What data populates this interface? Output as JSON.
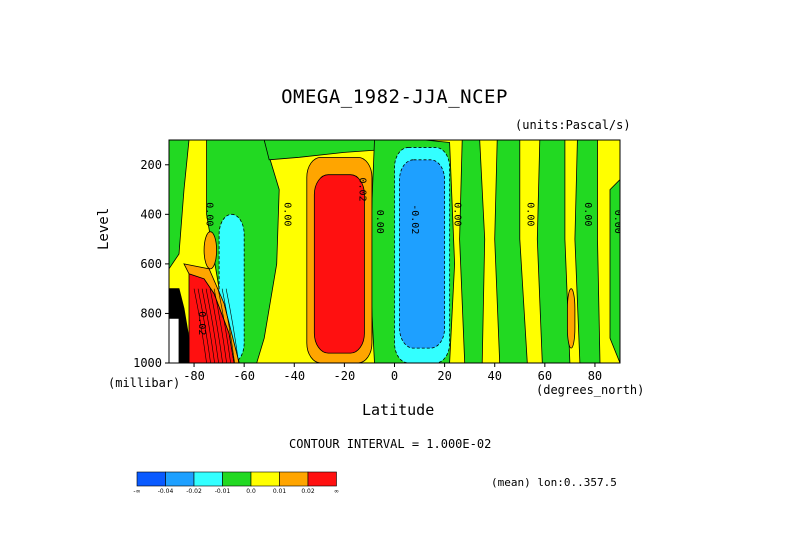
{
  "chart_data": {
    "type": "heatmap",
    "title": "OMEGA_1982-JJA_NCEP",
    "units": "(units:Pascal/s)",
    "xlabel": "Latitude",
    "x_units": "(degrees_north)",
    "ylabel": "Level",
    "y_units": "(millibar)",
    "xlim": [
      -90,
      90
    ],
    "ylim": [
      1000,
      100
    ],
    "x_ticks": [
      -80,
      -60,
      -40,
      -20,
      0,
      20,
      40,
      60,
      80
    ],
    "x_tick_labels": [
      "-80",
      "-60",
      "-40",
      "-20",
      "0",
      "20",
      "40",
      "60",
      "80"
    ],
    "y_ticks": [
      200,
      400,
      600,
      800,
      1000
    ],
    "y_tick_labels": [
      "200",
      "400",
      "600",
      "800",
      "1000"
    ],
    "contour_interval_text": "CONTOUR INTERVAL = 1.000E-02",
    "mean_text": "(mean) lon:0..357.5",
    "colorbar": {
      "colors": [
        "#0a5aff",
        "#1ea0ff",
        "#33ffff",
        "#22d922",
        "#ffff00",
        "#ffa500",
        "#ff1010"
      ],
      "labels": [
        "-∞",
        "-0.04",
        "-0.02",
        "-0.01",
        "0.0",
        "0.01",
        "0.02",
        "∞"
      ]
    },
    "regions": [
      {
        "name": "positive-core-southern-subtropics",
        "lat": [
          -32,
          -12
        ],
        "lev": [
          240,
          960
        ],
        "value": ">0.02"
      },
      {
        "name": "positive-ring-southern-subtropics",
        "lat": [
          -35,
          -9
        ],
        "lev": [
          170,
          1000
        ],
        "value": "0.01 to 0.02"
      },
      {
        "name": "negative-core-tropics",
        "lat": [
          2,
          20
        ],
        "lev": [
          180,
          940
        ],
        "value": "-0.04 to -0.02"
      },
      {
        "name": "negative-ring-tropics",
        "lat": [
          0,
          22
        ],
        "lev": [
          130,
          1000
        ],
        "value": "-0.02 to -0.01"
      },
      {
        "name": "negative-band-60S",
        "lat": [
          -70,
          -60
        ],
        "lev": [
          400,
          1000
        ],
        "value": "-0.02 to -0.01"
      },
      {
        "name": "positive-band-75S",
        "lat": [
          -80,
          -66
        ],
        "lev": [
          660,
          1000
        ],
        "value": ">0.02"
      }
    ],
    "contour_labels": [
      {
        "text": "0.00",
        "lat": -75,
        "lev": 400
      },
      {
        "text": "0.00",
        "lat": -44,
        "lev": 400
      },
      {
        "text": "0.02",
        "lat": -14,
        "lev": 300
      },
      {
        "text": "0.00",
        "lat": -7,
        "lev": 430
      },
      {
        "text": "-0.02",
        "lat": 7,
        "lev": 420
      },
      {
        "text": "0.00",
        "lat": 24,
        "lev": 400
      },
      {
        "text": "0.00",
        "lat": 53,
        "lev": 400
      },
      {
        "text": "0.00",
        "lat": 76,
        "lev": 400
      },
      {
        "text": "0.00",
        "lat": 88,
        "lev": 430
      },
      {
        "text": "0.02",
        "lat": -78,
        "lev": 840
      }
    ]
  }
}
